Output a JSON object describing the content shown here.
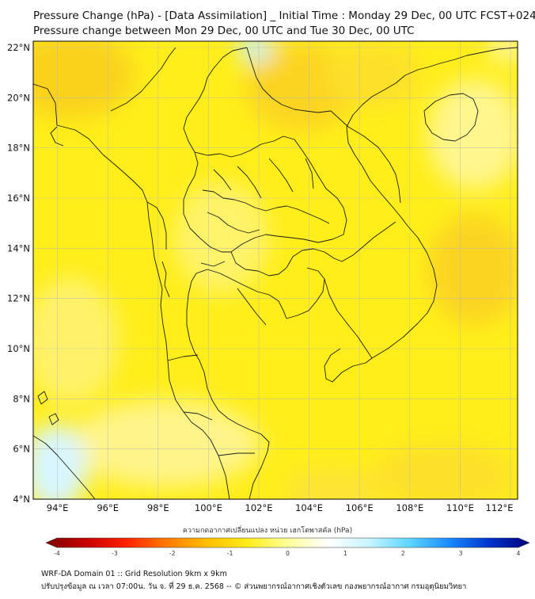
{
  "title_line1": "Pressure Change (hPa) - [Data Assimilation] _ Initial Time : Monday 29 Dec, 00 UTC FCST+024",
  "title_line2": "Pressure change between Mon 29 Dec, 00 UTC and Tue 30 Dec, 00 UTC",
  "lat_labels": [
    "22°N",
    "20°N",
    "18°N",
    "16°N",
    "14°N",
    "12°N",
    "10°N",
    "8°N",
    "6°N",
    "4°N"
  ],
  "lon_labels": [
    "94°E",
    "96°E",
    "98°E",
    "100°E",
    "102°E",
    "104°E",
    "106°E",
    "108°E",
    "110°E",
    "112°E"
  ],
  "colorbar": {
    "label": "ความกดอากาศเปลี่ยนแปลง หน่วย เฮกโตพาสคัล (hPa)",
    "ticks": [
      "-4",
      "-3",
      "-2",
      "-1",
      "0",
      "1",
      "2",
      "3",
      "4"
    ],
    "colors": [
      "#7a0000",
      "#c80000",
      "#ff2200",
      "#ff7a00",
      "#ffc000",
      "#ffec1a",
      "#ffff99",
      "#ffffff",
      "#c8f5ff",
      "#5fd7ff",
      "#1a8cff",
      "#0033cc",
      "#00007a"
    ]
  },
  "footer_line1": "WRF-DA Domain 01 :: Grid Resolution 9km x 9km",
  "footer_line2": "ปรับปรุงข้อมูล ณ เวลา 07:00น. วัน จ. ที่ 29 ธ.ค. 2568 -- © ส่วนพยากรณ์อากาศเชิงตัวเลข กองพยากรณ์อากาศ กรมอุตุนิยมวิทยา"
}
